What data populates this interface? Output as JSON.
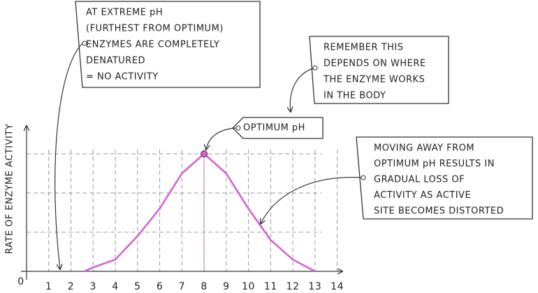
{
  "chart_data": {
    "type": "line",
    "ylabel": "RATE OF ENZYME ACTIVITY",
    "x": [
      2.6,
      3,
      4,
      5,
      6,
      7,
      8,
      9,
      10,
      11,
      12,
      13
    ],
    "series": [
      {
        "name": "activity",
        "color": "#d65fd0",
        "values": [
          0,
          0.1,
          0.3,
          0.9,
          1.6,
          2.5,
          3,
          2.5,
          1.6,
          0.8,
          0.3,
          0
        ]
      }
    ],
    "xlim": [
      0,
      14.8
    ],
    "xticks": [
      0,
      1,
      2,
      3,
      4,
      5,
      6,
      7,
      8,
      9,
      10,
      11,
      12,
      13,
      14
    ],
    "ylim": [
      0,
      3.5
    ],
    "yticks": [
      1,
      2,
      3
    ],
    "grid": true,
    "annotations": [
      {
        "lines": [
          "AT EXTREME pH",
          "(FURTHEST FROM OPTIMUM)",
          "ENZYMES ARE COMPLETELY",
          "DENATURED",
          "= NO ACTIVITY"
        ]
      },
      {
        "lines": [
          "REMEMBER THIS",
          "DEPENDS ON WHERE",
          "THE ENZYME WORKS",
          "IN THE BODY"
        ]
      },
      {
        "lines": [
          "OPTIMUM pH"
        ]
      },
      {
        "lines": [
          "MOVING AWAY FROM",
          "OPTIMUM pH RESULTS IN",
          "GRADUAL LOSS OF",
          "ACTIVITY AS ACTIVE",
          "SITE BECOMES DISTORTED"
        ]
      }
    ]
  }
}
